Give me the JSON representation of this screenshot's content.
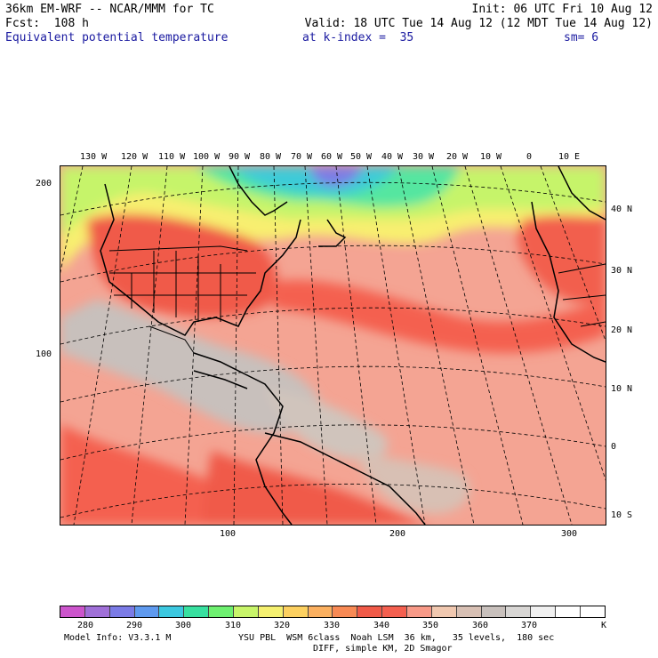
{
  "header": {
    "line1_left": "36km EM-WRF -- NCAR/MMM for TC",
    "line1_right": "Init: 06 UTC Fri 10 Aug 12",
    "line2_left": "Fcst:  108 h",
    "line2_right": "Valid: 18 UTC Tue 14 Aug 12 (12 MDT Tue 14 Aug 12)",
    "field": "Equivalent potential temperature",
    "level": "at k-index =  35",
    "smooth": "sm= 6"
  },
  "map": {
    "lon_labels": [
      "130 W",
      "120 W",
      "110 W",
      "100 W",
      "90 W",
      "80 W",
      "70 W",
      "60 W",
      "50 W",
      "40 W",
      "30 W",
      "20 W",
      "10 W",
      "0",
      "10 E"
    ],
    "lat_labels": [
      "40 N",
      "30 N",
      "20 N",
      "10 N",
      "0",
      "10 S"
    ],
    "grid_y_labels": [
      "200",
      "100"
    ],
    "grid_x_labels": [
      "100",
      "200",
      "300"
    ]
  },
  "colorbar": {
    "colors": [
      "#cc55cc",
      "#a070d8",
      "#7b7be6",
      "#5f9aef",
      "#3cc8e0",
      "#38e0a0",
      "#6ef070",
      "#c8f56a",
      "#f5f070",
      "#fcd060",
      "#fbb060",
      "#f88a55",
      "#f05a48",
      "#f46050",
      "#f89a88",
      "#f0c8b0",
      "#d8c0b4",
      "#c8c0bc",
      "#d8d6d4",
      "#f0f0f0",
      "#ffffff",
      "#ffffff"
    ],
    "labels": [
      "280",
      "290",
      "300",
      "310",
      "320",
      "330",
      "340",
      "350",
      "360",
      "370"
    ],
    "unit": "K"
  },
  "footer": {
    "model_info": "Model Info: V3.3.1 M",
    "physics1": "YSU PBL  WSM 6class  Noah LSM  36 km,   35 levels,  180 sec",
    "physics2": "DIFF, simple KM, 2D Smagor"
  }
}
